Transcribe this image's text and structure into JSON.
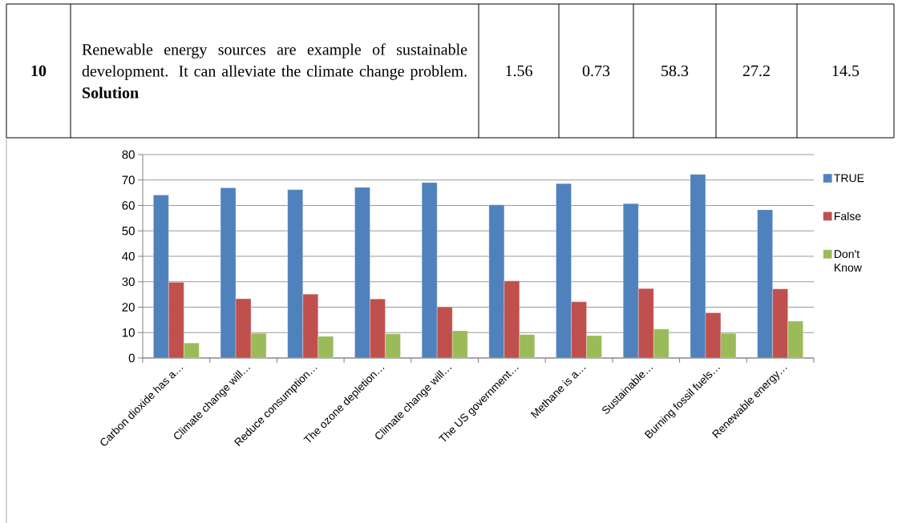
{
  "chart_data": {
    "type": "bar",
    "categories": [
      "Carbon dioxide has a…",
      "Climate change will…",
      "Reduce consumption…",
      "The ozone depletion…",
      "Climate change will…",
      "The US government…",
      "Methane is a…",
      "Sustainable…",
      "Burning fossil fuels…",
      "Renewable energy…"
    ],
    "series": [
      {
        "name": "TRUE",
        "color": "#4f81bd",
        "values": [
          64.1,
          66.9,
          66.2,
          67.1,
          69.0,
          60.2,
          68.6,
          60.7,
          72.2,
          58.3
        ]
      },
      {
        "name": "False",
        "color": "#c0504d",
        "values": [
          29.8,
          23.3,
          25.1,
          23.2,
          20.1,
          30.3,
          22.1,
          27.3,
          17.8,
          27.2
        ]
      },
      {
        "name": "Don't Know",
        "color": "#9bbb59",
        "values": [
          5.9,
          9.7,
          8.5,
          9.5,
          10.7,
          9.2,
          8.8,
          11.4,
          9.7,
          14.5
        ]
      }
    ],
    "ylim": [
      0,
      80
    ],
    "yticks": [
      0,
      10,
      20,
      30,
      40,
      50,
      60,
      70,
      80
    ],
    "grid": "y",
    "legend": "right",
    "annotations": [
      "10",
      "Renewable energy sources are example of sustainable development. It can alleviate the climate change problem. **Solution**",
      "1.56",
      "0.73",
      "58.3",
      "27.2",
      "14.5"
    ]
  }
}
